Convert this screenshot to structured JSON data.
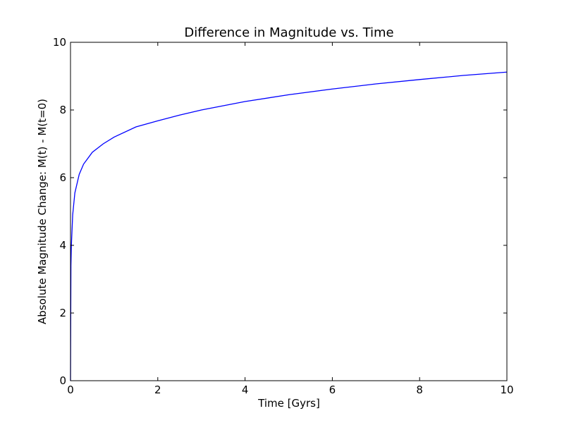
{
  "chart_data": {
    "type": "line",
    "title": "Difference in Magnitude vs. Time",
    "xlabel": "Time [Gyrs]",
    "ylabel": "Absolute Magnitude Change: M(t) - M(t=0)",
    "xlim": [
      0,
      10
    ],
    "ylim": [
      0,
      10
    ],
    "xticks": [
      0,
      2,
      4,
      6,
      8,
      10
    ],
    "yticks": [
      0,
      2,
      4,
      6,
      8,
      10
    ],
    "grid": false,
    "series": [
      {
        "color": "#0000ff",
        "x": [
          0,
          0.01,
          0.02,
          0.05,
          0.1,
          0.2,
          0.3,
          0.5,
          0.75,
          1,
          1.5,
          2,
          2.5,
          3,
          4,
          5,
          6,
          7,
          8,
          9,
          10
        ],
        "y": [
          0,
          3.4,
          4.0,
          4.9,
          5.55,
          6.1,
          6.4,
          6.75,
          7.0,
          7.2,
          7.5,
          7.68,
          7.85,
          8.0,
          8.25,
          8.45,
          8.62,
          8.77,
          8.9,
          9.02,
          9.12
        ]
      }
    ]
  }
}
